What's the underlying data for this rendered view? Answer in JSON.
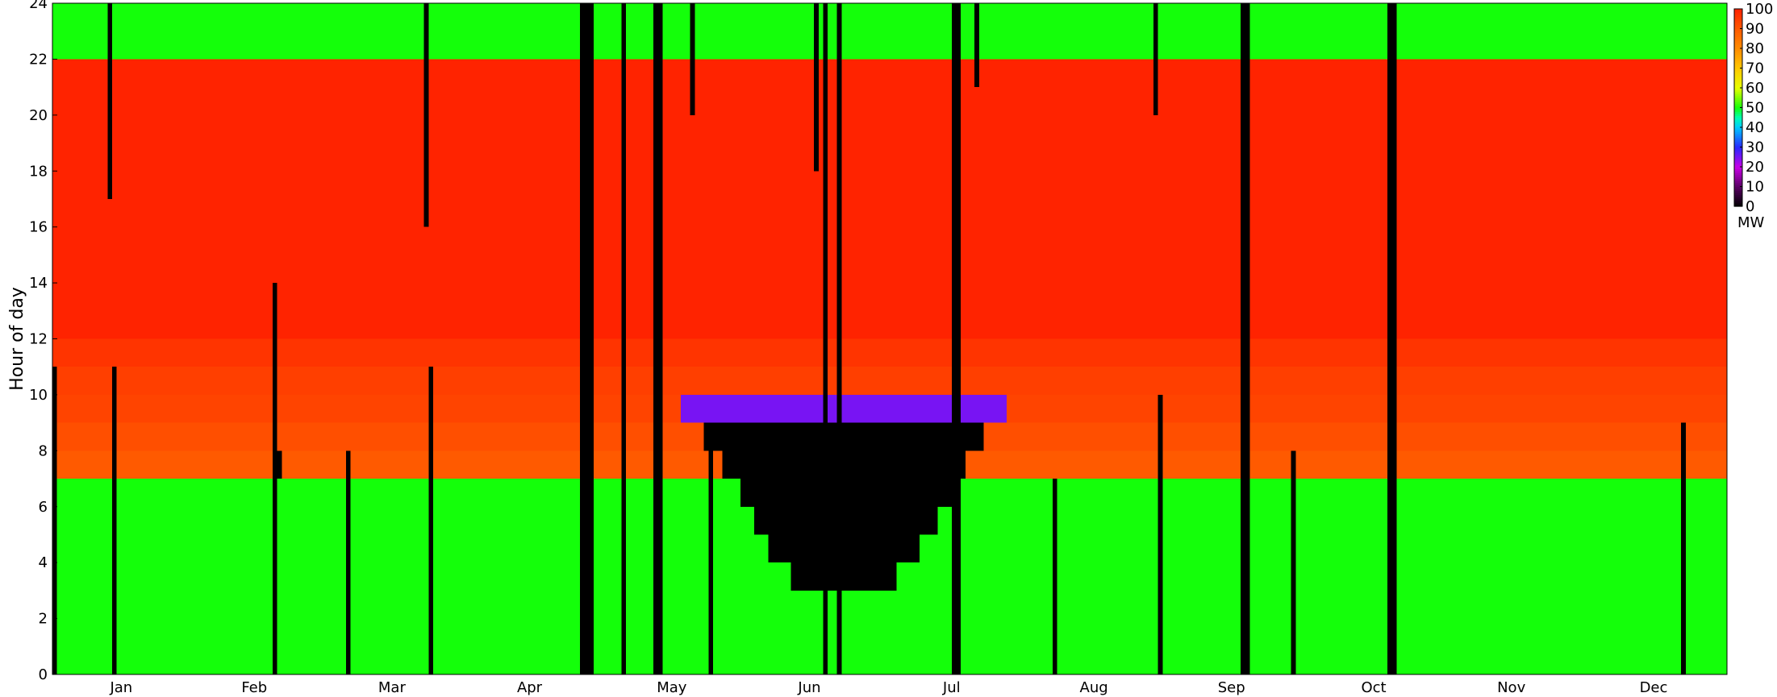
{
  "chart_data": {
    "type": "heatmap",
    "title": "",
    "xlabel": "",
    "ylabel": "Hour of day",
    "x_range_days": [
      1,
      365
    ],
    "ylim": [
      0,
      24
    ],
    "y_ticks": [
      0,
      2,
      4,
      6,
      8,
      10,
      12,
      14,
      16,
      18,
      20,
      22,
      24
    ],
    "month_labels": [
      "Jan",
      "Feb",
      "Mar",
      "Apr",
      "May",
      "Jun",
      "Jul",
      "Aug",
      "Sep",
      "Oct",
      "Nov",
      "Dec"
    ],
    "month_label_days": [
      16,
      45,
      75,
      105,
      136,
      166,
      197,
      228,
      258,
      289,
      319,
      350
    ],
    "colorbar": {
      "label": "MW",
      "min": 0,
      "max": 100,
      "ticks": [
        0,
        10,
        20,
        30,
        40,
        50,
        60,
        70,
        80,
        90,
        100
      ]
    },
    "grid": false,
    "base_profile": [
      {
        "hours": [
          0,
          7
        ],
        "mw": 50
      },
      {
        "hours": [
          7,
          8
        ],
        "mw": 90
      },
      {
        "hours": [
          8,
          9
        ],
        "mw": 92
      },
      {
        "hours": [
          9,
          10
        ],
        "mw": 94
      },
      {
        "hours": [
          10,
          11
        ],
        "mw": 95
      },
      {
        "hours": [
          11,
          12
        ],
        "mw": 97
      },
      {
        "hours": [
          12,
          22
        ],
        "mw": 100
      },
      {
        "hours": [
          22,
          24
        ],
        "mw": 50
      }
    ],
    "summer_trough": {
      "description_days": [
        138,
        208
      ],
      "rows": [
        {
          "hour": 9,
          "start": 138,
          "end": 208,
          "mw": 25
        },
        {
          "hour": 8,
          "start": 143,
          "end": 203,
          "mw": 0
        },
        {
          "hour": 7,
          "start": 147,
          "end": 199,
          "mw": 0
        },
        {
          "hour": 6,
          "start": 151,
          "end": 196,
          "mw": 0
        },
        {
          "hour": 5,
          "start": 154,
          "end": 193,
          "mw": 0
        },
        {
          "hour": 4,
          "start": 157,
          "end": 189,
          "mw": 0
        },
        {
          "hour": 3,
          "start": 162,
          "end": 184,
          "mw": 0
        }
      ]
    },
    "outage_days": [
      {
        "day": 1,
        "from": 0,
        "to": 11
      },
      {
        "day": 13,
        "from": 17,
        "to": 24
      },
      {
        "day": 14,
        "from": 0,
        "to": 11
      },
      {
        "day": 49,
        "from": 0,
        "to": 14
      },
      {
        "day": 50,
        "from": 7,
        "to": 8
      },
      {
        "day": 65,
        "from": 0,
        "to": 8
      },
      {
        "day": 82,
        "from": 16,
        "to": 24
      },
      {
        "day": 83,
        "from": 0,
        "to": 11
      },
      {
        "day": 116,
        "from": 0,
        "to": 24
      },
      {
        "day": 117,
        "from": 0,
        "to": 24
      },
      {
        "day": 118,
        "from": 0,
        "to": 24
      },
      {
        "day": 125,
        "from": 0,
        "to": 24
      },
      {
        "day": 132,
        "from": 0,
        "to": 24
      },
      {
        "day": 133,
        "from": 0,
        "to": 24
      },
      {
        "day": 140,
        "from": 20,
        "to": 24
      },
      {
        "day": 144,
        "from": 0,
        "to": 8
      },
      {
        "day": 167,
        "from": 18,
        "to": 24
      },
      {
        "day": 169,
        "from": 0,
        "to": 24
      },
      {
        "day": 172,
        "from": 0,
        "to": 24
      },
      {
        "day": 197,
        "from": 0,
        "to": 24
      },
      {
        "day": 198,
        "from": 0,
        "to": 24
      },
      {
        "day": 202,
        "from": 21,
        "to": 24
      },
      {
        "day": 219,
        "from": 0,
        "to": 7
      },
      {
        "day": 241,
        "from": 20,
        "to": 24
      },
      {
        "day": 242,
        "from": 0,
        "to": 10
      },
      {
        "day": 260,
        "from": 0,
        "to": 24
      },
      {
        "day": 261,
        "from": 0,
        "to": 24
      },
      {
        "day": 271,
        "from": 0,
        "to": 8
      },
      {
        "day": 292,
        "from": 0,
        "to": 24
      },
      {
        "day": 293,
        "from": 0,
        "to": 24
      },
      {
        "day": 356,
        "from": 0,
        "to": 9
      }
    ]
  }
}
